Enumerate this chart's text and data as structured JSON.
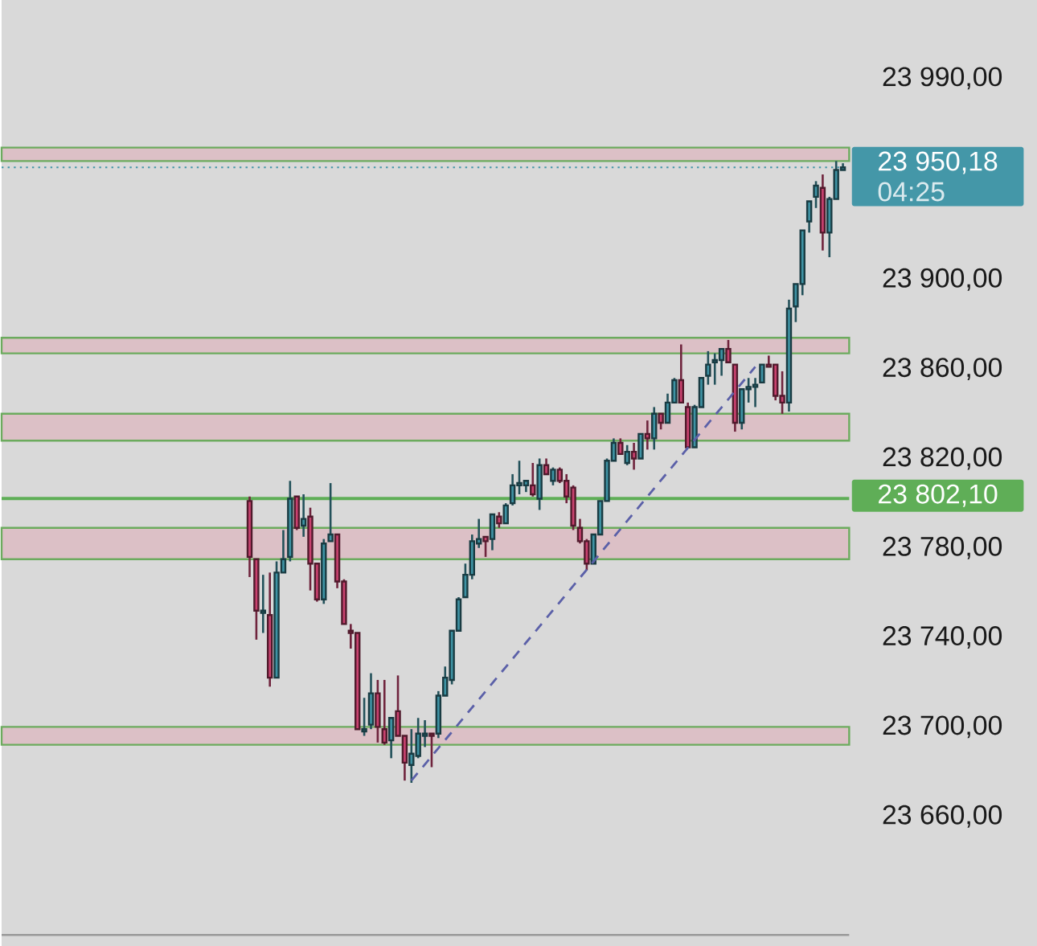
{
  "chart_data": {
    "type": "candlestick",
    "categories": [
      null,
      null,
      null,
      null,
      null,
      null,
      null,
      null,
      null,
      null,
      null,
      null,
      null,
      null,
      null,
      null,
      null,
      null,
      null,
      null,
      null,
      null,
      null,
      null,
      null,
      null,
      null,
      null,
      null,
      null,
      null,
      null,
      null,
      null,
      null,
      null,
      null,
      null,
      null,
      null,
      null,
      null,
      null,
      null,
      null,
      null,
      null,
      null,
      null,
      null,
      null,
      null,
      null,
      null,
      null,
      null,
      null,
      null,
      null,
      null,
      null,
      null,
      null,
      null,
      null,
      null,
      null,
      null,
      null,
      null,
      null,
      null,
      null,
      null,
      null,
      null,
      null,
      null,
      null,
      null,
      null,
      null,
      null,
      null,
      null,
      null,
      null,
      null,
      null
    ],
    "ohlc": [
      [
        23801,
        23803,
        23767,
        23776
      ],
      [
        23775,
        23775,
        23739,
        23752
      ],
      [
        23751,
        23768,
        23742,
        23752
      ],
      [
        23750,
        23769,
        23718,
        23722
      ],
      [
        23722,
        23774,
        23722,
        23769
      ],
      [
        23769,
        23788,
        23769,
        23775
      ],
      [
        23776,
        23810,
        23774,
        23802
      ],
      [
        23803,
        23803,
        23788,
        23789
      ],
      [
        23790,
        23804,
        23785,
        23793
      ],
      [
        23794,
        23798,
        23761,
        23773
      ],
      [
        23773,
        23773,
        23756,
        23757
      ],
      [
        23757,
        23784,
        23755,
        23782
      ],
      [
        23783,
        23809,
        23783,
        23786
      ],
      [
        23786,
        23786,
        23762,
        23765
      ],
      [
        23765,
        23766,
        23746,
        23746
      ],
      [
        23743,
        23746,
        23735,
        23742
      ],
      [
        23742,
        23742,
        23699,
        23699
      ],
      [
        23698,
        23713,
        23696,
        23699
      ],
      [
        23701,
        23724,
        23699,
        23715
      ],
      [
        23715,
        23721,
        23693,
        23700
      ],
      [
        23699,
        23721,
        23692,
        23693
      ],
      [
        23694,
        23704,
        23686,
        23704
      ],
      [
        23707,
        23723,
        23696,
        23696
      ],
      [
        23696,
        23696,
        23676,
        23684
      ],
      [
        23683,
        23699,
        23675,
        23688
      ],
      [
        23687,
        23704,
        23686,
        23697
      ],
      [
        23696,
        23703,
        23691,
        23697
      ],
      [
        23697,
        23697,
        23682,
        23696
      ],
      [
        23697,
        23716,
        23695,
        23714
      ],
      [
        23714,
        23727,
        23714,
        23722
      ],
      [
        23721,
        23743,
        23719,
        23743
      ],
      [
        23743,
        23758,
        23743,
        23757
      ],
      [
        23758,
        23773,
        23758,
        23768
      ],
      [
        23768,
        23786,
        23766,
        23783
      ],
      [
        23782,
        23793,
        23780,
        23784
      ],
      [
        23785,
        23785,
        23776,
        23783
      ],
      [
        23784,
        23795,
        23779,
        23795
      ],
      [
        23794,
        23796,
        23789,
        23791
      ],
      [
        23791,
        23800,
        23791,
        23799
      ],
      [
        23800,
        23813,
        23799,
        23808
      ],
      [
        23808,
        23819,
        23804,
        23809
      ],
      [
        23808,
        23810,
        23805,
        23810
      ],
      [
        23808,
        23818,
        23803,
        23804
      ],
      [
        23802,
        23820,
        23797,
        23817
      ],
      [
        23817,
        23820,
        23813,
        23813
      ],
      [
        23810,
        23816,
        23808,
        23815
      ],
      [
        23815,
        23816,
        23809,
        23810
      ],
      [
        23810,
        23813,
        23800,
        23803
      ],
      [
        23807,
        23808,
        23788,
        23790
      ],
      [
        23789,
        23793,
        23782,
        23783
      ],
      [
        23783,
        23784,
        23770,
        23773
      ],
      [
        23773,
        23786,
        23773,
        23786
      ],
      [
        23786,
        23801,
        23786,
        23801
      ],
      [
        23801,
        23820,
        23801,
        23819
      ],
      [
        23819,
        23829,
        23819,
        23827
      ],
      [
        23827,
        23829,
        23822,
        23822
      ],
      [
        23818,
        23826,
        23817,
        23823
      ],
      [
        23823,
        23827,
        23815,
        23820
      ],
      [
        23820,
        23831,
        23820,
        23831
      ],
      [
        23831,
        23837,
        23824,
        23829
      ],
      [
        23829,
        23843,
        23824,
        23840
      ],
      [
        23840,
        23840,
        23833,
        23836
      ],
      [
        23836,
        23849,
        23836,
        23845
      ],
      [
        23845,
        23856,
        23845,
        23855
      ],
      [
        23855,
        23871,
        23845,
        23845
      ],
      [
        23843,
        23845,
        23825,
        23825
      ],
      [
        23825,
        23844,
        23825,
        23843
      ],
      [
        23843,
        23856,
        23843,
        23856
      ],
      [
        23857,
        23868,
        23853,
        23862
      ],
      [
        23863,
        23867,
        23853,
        23864
      ],
      [
        23864,
        23869,
        23857,
        23869
      ],
      [
        23869,
        23873,
        23863,
        23863
      ],
      [
        23862,
        23862,
        23832,
        23836
      ],
      [
        23836,
        23851,
        23833,
        23851
      ],
      [
        23851,
        23856,
        23845,
        23852
      ],
      [
        23852,
        23856,
        23843,
        23853
      ],
      [
        23854,
        23862,
        23854,
        23862
      ],
      [
        23862,
        23866,
        23861,
        23861
      ],
      [
        23862,
        23862,
        23846,
        23848
      ],
      [
        23848,
        23859,
        23840,
        23845
      ],
      [
        23845,
        23891,
        23841,
        23887
      ],
      [
        23888,
        23898,
        23881,
        23898
      ],
      [
        23898,
        23922,
        23893,
        23922
      ],
      [
        23926,
        23935,
        23921,
        23935
      ],
      [
        23937,
        23944,
        23932,
        23942
      ],
      [
        23941,
        23947,
        23913,
        23921
      ],
      [
        23921,
        23937,
        23910,
        23936
      ],
      [
        23936,
        23953,
        23936,
        23949
      ],
      [
        23949,
        23952,
        23949,
        23950.18
      ]
    ],
    "colors": [
      "#c9426f",
      "#c9426f",
      "#3f93a4",
      "#c9426f",
      "#3f93a4",
      "#3f93a4",
      "#3f93a4",
      "#c9426f",
      "#3f93a4",
      "#c9426f",
      "#c9426f",
      "#3f93a4",
      "#3f93a4",
      "#c9426f",
      "#c9426f",
      "#c9426f",
      "#c9426f",
      "#3f93a4",
      "#3f93a4",
      "#c9426f",
      "#c9426f",
      "#3f93a4",
      "#c9426f",
      "#c9426f",
      "#3f93a4",
      "#3f93a4",
      "#3f93a4",
      "#c9426f",
      "#3f93a4",
      "#3f93a4",
      "#3f93a4",
      "#3f93a4",
      "#3f93a4",
      "#3f93a4",
      "#3f93a4",
      "#c9426f",
      "#3f93a4",
      "#c9426f",
      "#3f93a4",
      "#3f93a4",
      "#3f93a4",
      "#3f93a4",
      "#c9426f",
      "#3f93a4",
      "#c9426f",
      "#3f93a4",
      "#c9426f",
      "#c9426f",
      "#c9426f",
      "#c9426f",
      "#c9426f",
      "#3f93a4",
      "#3f93a4",
      "#3f93a4",
      "#3f93a4",
      "#c9426f",
      "#3f93a4",
      "#c9426f",
      "#3f93a4",
      "#c9426f",
      "#3f93a4",
      "#c9426f",
      "#3f93a4",
      "#3f93a4",
      "#c9426f",
      "#c9426f",
      "#3f93a4",
      "#3f93a4",
      "#3f93a4",
      "#3f93a4",
      "#3f93a4",
      "#c9426f",
      "#c9426f",
      "#3f93a4",
      "#3f93a4",
      "#3f93a4",
      "#3f93a4",
      "#c9426f",
      "#c9426f",
      "#c9426f",
      "#3f93a4",
      "#3f93a4",
      "#3f93a4",
      "#3f93a4",
      "#3f93a4",
      "#c9426f",
      "#3f93a4",
      "#3f93a4",
      "#3f93a4"
    ],
    "series": [
      {
        "type": "line",
        "color": "#5b60a8",
        "line_style": "dashed",
        "values": [
          null,
          null,
          null,
          null,
          null,
          null,
          null,
          null,
          null,
          null,
          null,
          null,
          null,
          null,
          null,
          null,
          null,
          null,
          null,
          null,
          null,
          null,
          null,
          null,
          23676,
          null,
          null,
          null,
          null,
          null,
          null,
          null,
          null,
          null,
          null,
          null,
          null,
          null,
          null,
          null,
          null,
          null,
          null,
          null,
          null,
          null,
          null,
          null,
          null,
          null,
          null,
          null,
          null,
          null,
          null,
          null,
          null,
          null,
          null,
          null,
          null,
          null,
          null,
          null,
          null,
          null,
          null,
          null,
          null,
          null,
          null,
          null,
          null,
          null,
          null,
          23861,
          null,
          null,
          null,
          null,
          null,
          null,
          null,
          null,
          null,
          null,
          null,
          null,
          null
        ]
      }
    ],
    "ylim": [
      23607,
      24025
    ],
    "yticks": [
      {
        "value": 23660,
        "label": "23 660,00"
      },
      {
        "value": 23700,
        "label": "23 700,00"
      },
      {
        "value": 23740,
        "label": "23 740,00"
      },
      {
        "value": 23780,
        "label": "23 780,00"
      },
      {
        "value": 23820,
        "label": "23 820,00"
      },
      {
        "value": 23860,
        "label": "23 860,00"
      },
      {
        "value": 23900,
        "label": "23 900,00"
      },
      {
        "value": 23990,
        "label": "23 990,00"
      }
    ],
    "tick_labels": "y",
    "bands": [
      {
        "axis": "y",
        "from": 23953,
        "to": 23959,
        "color": "#dcc0c6"
      },
      {
        "axis": "y",
        "from": 23867,
        "to": 23874,
        "color": "#dcc0c6"
      },
      {
        "axis": "y",
        "from": 23828,
        "to": 23840,
        "color": "#dcc0c6"
      },
      {
        "axis": "y",
        "from": 23775,
        "to": 23789,
        "color": "#dcc0c6"
      },
      {
        "axis": "y",
        "from": 23692,
        "to": 23700,
        "color": "#dcc0c6"
      }
    ],
    "ref_lines": [
      {
        "axis": "y",
        "value": 23802.1,
        "label": "23 802,10",
        "color": "#5fae57",
        "line_style": "solid"
      },
      {
        "axis": "y",
        "value": 23950.18,
        "label": "23 950,18",
        "color": "#4497a8",
        "line_style": "dotted"
      }
    ],
    "annotations": [
      "04:25"
    ]
  }
}
